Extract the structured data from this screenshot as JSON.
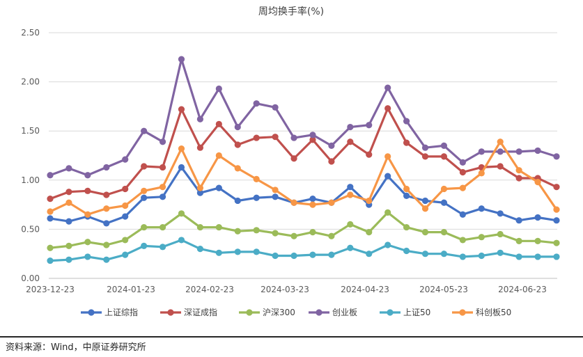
{
  "chart_data": {
    "type": "line",
    "title": "周均换手率(%)",
    "xlabel": "",
    "ylabel": "",
    "ylim": [
      0,
      2.5
    ],
    "yticks": [
      "0.00",
      "0.50",
      "1.00",
      "1.50",
      "2.00",
      "2.50"
    ],
    "xtick_labels": [
      "2023-12-23",
      "2024-01-23",
      "2024-02-23",
      "2024-03-23",
      "2024-04-23",
      "2024-05-23",
      "2024-06-23"
    ],
    "grid": true,
    "legend_position": "bottom",
    "series": [
      {
        "name": "上证综指",
        "color": "#4472c4",
        "values": [
          0.61,
          0.58,
          0.63,
          0.56,
          0.63,
          0.82,
          0.83,
          1.13,
          0.87,
          0.92,
          0.79,
          0.82,
          0.83,
          0.77,
          0.81,
          0.77,
          0.93,
          0.75,
          1.04,
          0.84,
          0.79,
          0.77,
          0.65,
          0.71,
          0.66,
          0.59,
          0.62,
          0.59
        ]
      },
      {
        "name": "深证成指",
        "color": "#c0504d",
        "values": [
          0.81,
          0.88,
          0.89,
          0.85,
          0.91,
          1.14,
          1.13,
          1.72,
          1.33,
          1.57,
          1.36,
          1.43,
          1.44,
          1.22,
          1.41,
          1.19,
          1.39,
          1.26,
          1.73,
          1.38,
          1.24,
          1.24,
          1.08,
          1.13,
          1.14,
          1.02,
          1.02,
          0.93
        ]
      },
      {
        "name": "沪深300",
        "color": "#9bbb59",
        "values": [
          0.31,
          0.33,
          0.37,
          0.34,
          0.39,
          0.52,
          0.52,
          0.66,
          0.52,
          0.52,
          0.48,
          0.49,
          0.46,
          0.43,
          0.47,
          0.43,
          0.55,
          0.47,
          0.67,
          0.52,
          0.47,
          0.47,
          0.39,
          0.42,
          0.45,
          0.38,
          0.38,
          0.36
        ]
      },
      {
        "name": "创业板",
        "color": "#8064a2",
        "values": [
          1.05,
          1.12,
          1.05,
          1.13,
          1.21,
          1.5,
          1.39,
          2.23,
          1.62,
          1.93,
          1.54,
          1.78,
          1.74,
          1.43,
          1.46,
          1.35,
          1.54,
          1.56,
          1.94,
          1.6,
          1.33,
          1.35,
          1.18,
          1.29,
          1.29,
          1.29,
          1.3,
          1.24
        ]
      },
      {
        "name": "上证50",
        "color": "#4bacc6",
        "values": [
          0.18,
          0.19,
          0.22,
          0.19,
          0.24,
          0.33,
          0.32,
          0.39,
          0.3,
          0.26,
          0.27,
          0.27,
          0.23,
          0.23,
          0.24,
          0.24,
          0.31,
          0.25,
          0.34,
          0.28,
          0.25,
          0.25,
          0.22,
          0.23,
          0.26,
          0.22,
          0.22,
          0.22
        ]
      },
      {
        "name": "科创板50",
        "color": "#f79646",
        "values": [
          0.68,
          0.77,
          0.65,
          0.71,
          0.74,
          0.89,
          0.93,
          1.32,
          0.92,
          1.25,
          1.12,
          1.01,
          0.9,
          0.77,
          0.75,
          0.77,
          0.85,
          0.79,
          1.24,
          0.91,
          0.71,
          0.91,
          0.92,
          1.07,
          1.39,
          1.1,
          0.98,
          0.7
        ]
      }
    ]
  },
  "footer": {
    "source": "资料来源：Wind，中原证券研究所"
  }
}
